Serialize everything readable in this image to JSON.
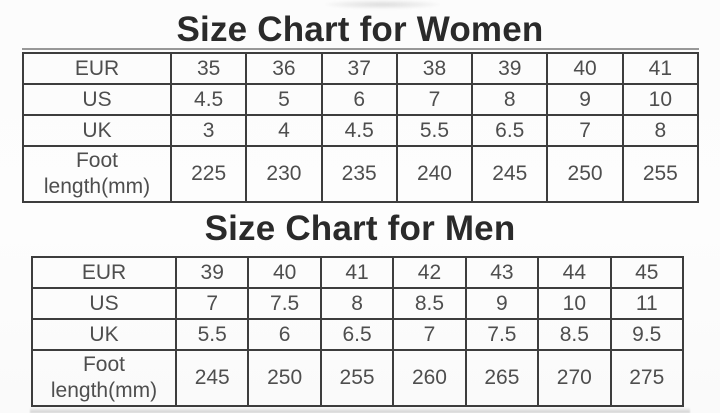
{
  "women": {
    "title": "Size Chart for Women",
    "rows": [
      {
        "label": "EUR",
        "values": [
          "35",
          "36",
          "37",
          "38",
          "39",
          "40",
          "41"
        ]
      },
      {
        "label": "US",
        "values": [
          "4.5",
          "5",
          "6",
          "7",
          "8",
          "9",
          "10"
        ]
      },
      {
        "label": "UK",
        "values": [
          "3",
          "4",
          "4.5",
          "5.5",
          "6.5",
          "7",
          "8"
        ]
      },
      {
        "label": "Foot\nlength(mm)",
        "values": [
          "225",
          "230",
          "235",
          "240",
          "245",
          "250",
          "255"
        ]
      }
    ]
  },
  "men": {
    "title": "Size Chart for Men",
    "rows": [
      {
        "label": "EUR",
        "values": [
          "39",
          "40",
          "41",
          "42",
          "43",
          "44",
          "45"
        ]
      },
      {
        "label": "US",
        "values": [
          "7",
          "7.5",
          "8",
          "8.5",
          "9",
          "10",
          "11"
        ]
      },
      {
        "label": "UK",
        "values": [
          "5.5",
          "6",
          "6.5",
          "7",
          "7.5",
          "8.5",
          "9.5"
        ]
      },
      {
        "label": "Foot\nlength(mm)",
        "values": [
          "245",
          "250",
          "255",
          "260",
          "265",
          "270",
          "275"
        ]
      }
    ]
  },
  "colors": {
    "background": "#fdfdfd",
    "table_border": "#3d3d3d",
    "cell_text": "#4e4e4e",
    "title_text": "#2a2a2a"
  }
}
